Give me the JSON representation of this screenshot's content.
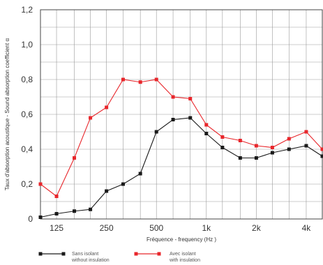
{
  "chart_data": {
    "type": "line",
    "xlabel": "Fréquence - frequency  (Hz  )",
    "ylabel": "Taux d'absorption acoustique - Sound absorption coefficient α",
    "x_scale": "log",
    "xlim": [
      100,
      5000
    ],
    "ylim": [
      0,
      1.2
    ],
    "grid": true,
    "x_ticks": [
      {
        "value": 125,
        "label": "125"
      },
      {
        "value": 250,
        "label": "250"
      },
      {
        "value": 500,
        "label": "500"
      },
      {
        "value": 1000,
        "label": "1k"
      },
      {
        "value": 2000,
        "label": "2k"
      },
      {
        "value": 4000,
        "label": "4k"
      }
    ],
    "y_ticks": [
      {
        "value": 0,
        "label": "0"
      },
      {
        "value": 0.2,
        "label": "0,2"
      },
      {
        "value": 0.4,
        "label": "0,4"
      },
      {
        "value": 0.6,
        "label": "0,6"
      },
      {
        "value": 0.8,
        "label": "0,8"
      },
      {
        "value": 1.0,
        "label": "1,0"
      },
      {
        "value": 1.2,
        "label": "1,2"
      }
    ],
    "x": [
      100,
      125,
      160,
      200,
      250,
      315,
      400,
      500,
      630,
      800,
      1000,
      1250,
      1600,
      2000,
      2500,
      3150,
      4000,
      5000
    ],
    "series": [
      {
        "name": "Sans isolant / without insulation",
        "label_fr": "Sans isolant",
        "label_en": "without insulation",
        "color": "#1a1a1a",
        "values": [
          0.01,
          0.03,
          0.045,
          0.055,
          0.16,
          0.2,
          0.26,
          0.5,
          0.57,
          0.58,
          0.49,
          0.41,
          0.35,
          0.35,
          0.38,
          0.4,
          0.42,
          0.36
        ]
      },
      {
        "name": "Avec isolant / with insulation",
        "label_fr": "Avec isolant",
        "label_en": "with insulation",
        "color": "#e8262b",
        "values": [
          0.2,
          0.13,
          0.35,
          0.58,
          0.64,
          0.8,
          0.785,
          0.8,
          0.7,
          0.69,
          0.54,
          0.47,
          0.45,
          0.42,
          0.41,
          0.46,
          0.5,
          0.4
        ]
      }
    ],
    "legend_position": "bottom-left"
  }
}
